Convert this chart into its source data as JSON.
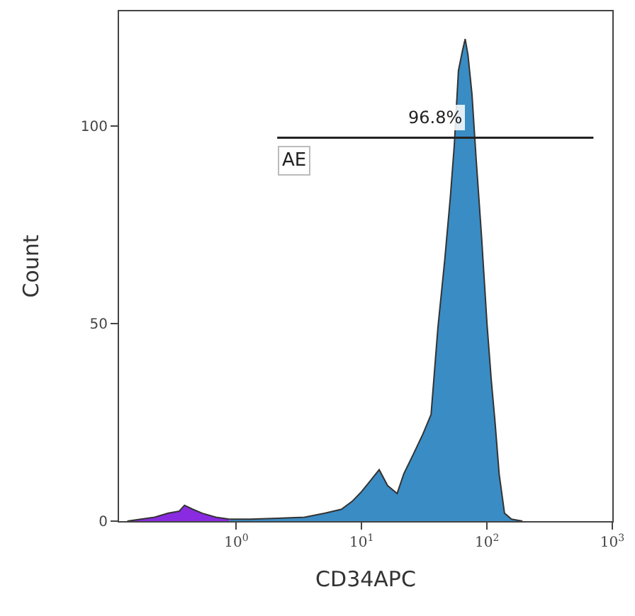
{
  "chart_data": {
    "type": "area",
    "xlabel": "CD34APC",
    "ylabel": "Count",
    "log": "x",
    "xlim": [
      0.116,
      1000
    ],
    "ylim": [
      0,
      129
    ],
    "xticks": [
      {
        "value": 1,
        "label": "10$^{0}$"
      },
      {
        "value": 10,
        "label": "10$^{1}$"
      },
      {
        "value": 100,
        "label": "10$^{2}$"
      },
      {
        "value": 1000,
        "label": "10$^{3}$"
      }
    ],
    "yticks": [
      0,
      50,
      100
    ],
    "series": [
      {
        "color": "#8a2be2",
        "x": [
          0.135,
          0.173,
          0.223,
          0.286,
          0.35,
          0.386,
          0.449,
          0.535,
          0.687,
          0.88
        ],
        "values": [
          0,
          0.5,
          1,
          2,
          2.5,
          4,
          3,
          2,
          1,
          0.5
        ]
      },
      {
        "color": "#3a8cc4",
        "x": [
          0.88,
          1.28,
          2.12,
          3.5,
          5.1,
          6.9,
          8.4,
          10,
          11.6,
          13.8,
          16.1,
          19.2,
          21.7,
          25.9,
          30.8,
          35.8,
          40.6,
          46,
          51,
          54.8,
          59.2,
          63.7,
          67,
          70.5,
          75.9,
          81.8,
          90.5,
          100,
          108,
          116,
          125,
          138,
          157,
          192
        ],
        "values": [
          0.5,
          0.5,
          0.7,
          1,
          2,
          3,
          5,
          7.5,
          10,
          13,
          9,
          7,
          12,
          17,
          22,
          27,
          49,
          66,
          82,
          95,
          114,
          119,
          122,
          118,
          108,
          92,
          72,
          50,
          36,
          25,
          12,
          2,
          0.5,
          0
        ]
      },
      {
        "type": "line",
        "color": "#222222",
        "x": [
          2.12,
          707
        ],
        "values": [
          97,
          97
        ]
      }
    ],
    "annotations": [
      "96.8%",
      "AE"
    ]
  }
}
